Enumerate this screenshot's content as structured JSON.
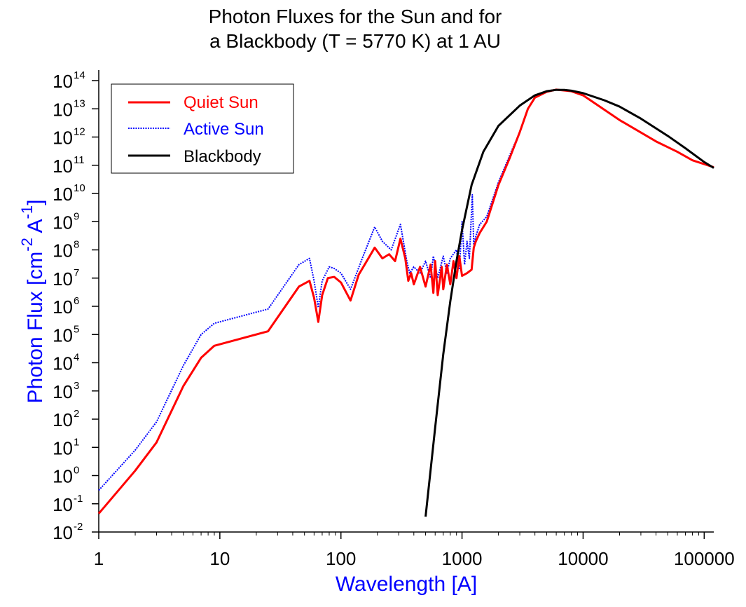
{
  "chart_data": {
    "type": "line",
    "title_lines": [
      "Photon Fluxes for the Sun and for",
      "a Blackbody (T = 5770 K) at 1 AU"
    ],
    "xlabel": "Wavelength [A]",
    "ylabel": {
      "main": "Photon Flux [cm",
      "sup1": "-2",
      "mid": " A",
      "sup2": "-1",
      "end": "]"
    },
    "x_scale": "log",
    "y_scale": "log",
    "xlim": [
      1,
      120000
    ],
    "ylim": [
      0.01,
      100000000000000
    ],
    "x_ticks": [
      {
        "value": 1,
        "label": "1"
      },
      {
        "value": 10,
        "label": "10"
      },
      {
        "value": 100,
        "label": "100"
      },
      {
        "value": 1000,
        "label": "1000"
      },
      {
        "value": 10000,
        "label": "10000"
      },
      {
        "value": 100000,
        "label": "100000"
      }
    ],
    "y_ticks": [
      {
        "value": 0.01,
        "base": "10",
        "exp": "-2"
      },
      {
        "value": 0.1,
        "base": "10",
        "exp": "-1"
      },
      {
        "value": 1,
        "base": "10",
        "exp": "0"
      },
      {
        "value": 10,
        "base": "10",
        "exp": "1"
      },
      {
        "value": 100,
        "base": "10",
        "exp": "2"
      },
      {
        "value": 1000,
        "base": "10",
        "exp": "3"
      },
      {
        "value": 10000,
        "base": "10",
        "exp": "4"
      },
      {
        "value": 100000,
        "base": "10",
        "exp": "5"
      },
      {
        "value": 1000000,
        "base": "10",
        "exp": "6"
      },
      {
        "value": 10000000,
        "base": "10",
        "exp": "7"
      },
      {
        "value": 100000000,
        "base": "10",
        "exp": "8"
      },
      {
        "value": 1000000000,
        "base": "10",
        "exp": "9"
      },
      {
        "value": 10000000000,
        "base": "10",
        "exp": "10"
      },
      {
        "value": 100000000000,
        "base": "10",
        "exp": "11"
      },
      {
        "value": 1000000000000,
        "base": "10",
        "exp": "12"
      },
      {
        "value": 10000000000000,
        "base": "10",
        "exp": "13"
      },
      {
        "value": 100000000000000,
        "base": "10",
        "exp": "14"
      }
    ],
    "grid": false,
    "legend": {
      "position": "top-left"
    },
    "colors": {
      "quiet": "#ff0000",
      "active": "#0000ff",
      "blackbody": "#000000",
      "axis_label": "#0000ff",
      "text": "#000000"
    },
    "series": [
      {
        "name": "Quiet Sun",
        "style": "solid",
        "points": [
          [
            1,
            0.045
          ],
          [
            2,
            1.5
          ],
          [
            3,
            15
          ],
          [
            5,
            1500
          ],
          [
            7,
            15000
          ],
          [
            9,
            40000
          ],
          [
            25,
            130000
          ],
          [
            45,
            5000000
          ],
          [
            55,
            8000000
          ],
          [
            60,
            2000000
          ],
          [
            65,
            280000
          ],
          [
            70,
            2500000
          ],
          [
            78,
            10000000
          ],
          [
            88,
            11000000
          ],
          [
            100,
            7000000
          ],
          [
            120,
            1600000
          ],
          [
            140,
            13000000
          ],
          [
            190,
            120000000
          ],
          [
            220,
            50000000
          ],
          [
            250,
            70000000
          ],
          [
            280,
            40000000
          ],
          [
            310,
            250000000
          ],
          [
            340,
            50000000
          ],
          [
            360,
            8000000
          ],
          [
            380,
            15000000
          ],
          [
            400,
            6000000
          ],
          [
            450,
            25000000
          ],
          [
            500,
            5000000
          ],
          [
            550,
            30000000
          ],
          [
            580,
            3000000
          ],
          [
            600,
            40000000
          ],
          [
            630,
            2500000
          ],
          [
            680,
            25000000
          ],
          [
            700,
            4000000
          ],
          [
            750,
            30000000
          ],
          [
            800,
            6000000
          ],
          [
            850,
            40000000
          ],
          [
            900,
            10000000
          ],
          [
            950,
            60000000
          ],
          [
            1000,
            12000000
          ],
          [
            1100,
            15000000
          ],
          [
            1200,
            20000000
          ],
          [
            1250,
            120000000
          ],
          [
            1300,
            200000000
          ],
          [
            1400,
            400000000
          ],
          [
            1600,
            1000000000
          ],
          [
            2000,
            20000000000
          ],
          [
            2500,
            200000000000
          ],
          [
            3000,
            1500000000000
          ],
          [
            3500,
            10000000000000
          ],
          [
            4000,
            25000000000000
          ],
          [
            5000,
            40000000000000
          ],
          [
            6000,
            48000000000000
          ],
          [
            8000,
            42000000000000
          ],
          [
            10000,
            30000000000000
          ],
          [
            20000,
            4000000000000
          ],
          [
            40000,
            700000000000
          ],
          [
            60000,
            300000000000
          ],
          [
            80000,
            150000000000
          ],
          [
            120000,
            85000000000
          ]
        ]
      },
      {
        "name": "Active Sun",
        "style": "dotted",
        "points": [
          [
            1,
            0.3
          ],
          [
            2,
            8
          ],
          [
            3,
            80
          ],
          [
            5,
            8000
          ],
          [
            7,
            100000
          ],
          [
            9,
            250000
          ],
          [
            25,
            800000
          ],
          [
            45,
            30000000
          ],
          [
            55,
            50000000
          ],
          [
            60,
            8000000
          ],
          [
            65,
            900000
          ],
          [
            70,
            8000000
          ],
          [
            80,
            25000000
          ],
          [
            88,
            22000000
          ],
          [
            100,
            15000000
          ],
          [
            120,
            4000000
          ],
          [
            150,
            50000000
          ],
          [
            190,
            650000000
          ],
          [
            220,
            200000000
          ],
          [
            260,
            100000000
          ],
          [
            310,
            800000000
          ],
          [
            350,
            40000000
          ],
          [
            370,
            15000000
          ],
          [
            400,
            25000000
          ],
          [
            450,
            15000000
          ],
          [
            500,
            40000000
          ],
          [
            550,
            10000000
          ],
          [
            580,
            60000000
          ],
          [
            630,
            10000000
          ],
          [
            700,
            60000000
          ],
          [
            750,
            15000000
          ],
          [
            800,
            50000000
          ],
          [
            900,
            100000000
          ],
          [
            950,
            20000000
          ],
          [
            1000,
            1000000000
          ],
          [
            1050,
            30000000
          ],
          [
            1100,
            200000000
          ],
          [
            1150,
            50000000
          ],
          [
            1216,
            9000000000
          ],
          [
            1250,
            150000000
          ],
          [
            1300,
            300000000
          ],
          [
            1400,
            800000000
          ],
          [
            1600,
            1500000000
          ],
          [
            2000,
            25000000000
          ],
          [
            2500,
            250000000000
          ],
          [
            3000,
            1500000000000
          ],
          [
            3500,
            10000000000000
          ],
          [
            4000,
            25000000000000
          ],
          [
            5000,
            40000000000000
          ],
          [
            6000,
            48000000000000
          ],
          [
            8000,
            42000000000000
          ],
          [
            10000,
            30000000000000
          ],
          [
            20000,
            4000000000000
          ],
          [
            40000,
            700000000000
          ],
          [
            60000,
            300000000000
          ],
          [
            80000,
            150000000000
          ],
          [
            120000,
            85000000000
          ]
        ]
      },
      {
        "name": "Blackbody",
        "style": "solid",
        "temperature_K": 5770,
        "points": [
          [
            500,
            0.035
          ],
          [
            600,
            50
          ],
          [
            700,
            20000
          ],
          [
            800,
            1500000
          ],
          [
            900,
            40000000
          ],
          [
            1000,
            500000000
          ],
          [
            1200,
            20000000000
          ],
          [
            1500,
            300000000000
          ],
          [
            2000,
            2500000000000
          ],
          [
            3000,
            13000000000000
          ],
          [
            4000,
            30000000000000
          ],
          [
            5000,
            42000000000000
          ],
          [
            6000,
            47000000000000
          ],
          [
            7000,
            47000000000000
          ],
          [
            8000,
            44000000000000
          ],
          [
            10000,
            36000000000000
          ],
          [
            15000,
            20000000000000
          ],
          [
            20000,
            12000000000000
          ],
          [
            30000,
            4500000000000
          ],
          [
            50000,
            1100000000000
          ],
          [
            70000,
            400000000000
          ],
          [
            100000,
            130000000000
          ],
          [
            120000,
            80000000000
          ]
        ]
      }
    ]
  }
}
